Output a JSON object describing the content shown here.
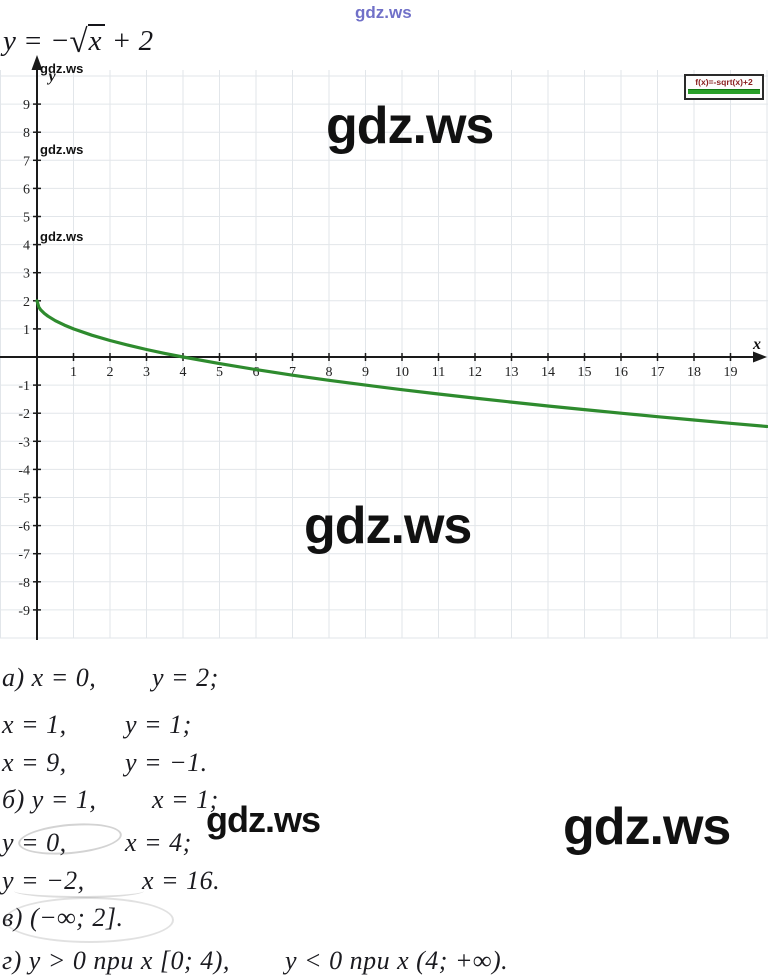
{
  "watermark": {
    "text": "gdz.ws"
  },
  "equation": {
    "lhs": "y",
    "eq": " = −",
    "sqrt_sign": "√",
    "radicand": "x",
    "tail": " + 2"
  },
  "legend": {
    "label": "f(x)=-sqrt(x)+2"
  },
  "axis": {
    "x_label": "x",
    "y_label": "y"
  },
  "chart_data": {
    "type": "line",
    "title": "y = −√x + 2",
    "function": "f(x) = -sqrt(x) + 2",
    "x_range": [
      0,
      20
    ],
    "xlim": [
      -1,
      20
    ],
    "ylim": [
      -10,
      10
    ],
    "grid": true,
    "legend_position": "top-right",
    "legend_label": "f(x)=-sqrt(x)+2",
    "curve_color": "#2e8b2e",
    "x_ticks": [
      1,
      2,
      3,
      4,
      5,
      6,
      7,
      8,
      9,
      10,
      11,
      12,
      13,
      14,
      15,
      16,
      17,
      18,
      19
    ],
    "y_ticks": [
      9,
      8,
      7,
      6,
      5,
      4,
      3,
      2,
      1,
      -1,
      -2,
      -3,
      -4,
      -5,
      -6,
      -7,
      -8,
      -9
    ],
    "key_points": [
      [
        0,
        2
      ],
      [
        1,
        1
      ],
      [
        4,
        0
      ],
      [
        9,
        -1
      ],
      [
        16,
        -2
      ]
    ],
    "samples": [
      [
        0,
        2
      ],
      [
        0.05,
        1.776
      ],
      [
        0.1,
        1.684
      ],
      [
        0.2,
        1.553
      ],
      [
        0.3,
        1.452
      ],
      [
        0.5,
        1.293
      ],
      [
        0.75,
        1.134
      ],
      [
        1,
        1
      ],
      [
        1.5,
        0.775
      ],
      [
        2,
        0.586
      ],
      [
        2.5,
        0.419
      ],
      [
        3,
        0.268
      ],
      [
        3.5,
        0.129
      ],
      [
        4,
        0
      ],
      [
        5,
        -0.236
      ],
      [
        6,
        -0.449
      ],
      [
        7,
        -0.646
      ],
      [
        8,
        -0.828
      ],
      [
        9,
        -1
      ],
      [
        10,
        -1.162
      ],
      [
        11,
        -1.317
      ],
      [
        12,
        -1.464
      ],
      [
        13,
        -1.606
      ],
      [
        14,
        -1.742
      ],
      [
        15,
        -1.873
      ],
      [
        16,
        -2
      ],
      [
        17,
        -2.123
      ],
      [
        18,
        -2.243
      ],
      [
        19,
        -2.359
      ],
      [
        20,
        -2.472
      ]
    ]
  },
  "answers": {
    "lines": [
      {
        "left": "а) x = 0,",
        "right": "y = 2;"
      },
      {
        "left": "x = 1,",
        "right": "y = 1;"
      },
      {
        "left": "x = 9,",
        "right": "y = −1."
      },
      {
        "left": "б) y = 1,",
        "right": "x = 1;"
      },
      {
        "left": "y = 0,",
        "right": "x = 4;"
      },
      {
        "left": "y = −2,",
        "right": "x = 16."
      },
      {
        "left": "в) (−∞; 2].",
        "right": ""
      },
      {
        "left": "г) y > 0 при x [0; 4),",
        "right": "y < 0 при x (4; +∞)."
      }
    ]
  }
}
